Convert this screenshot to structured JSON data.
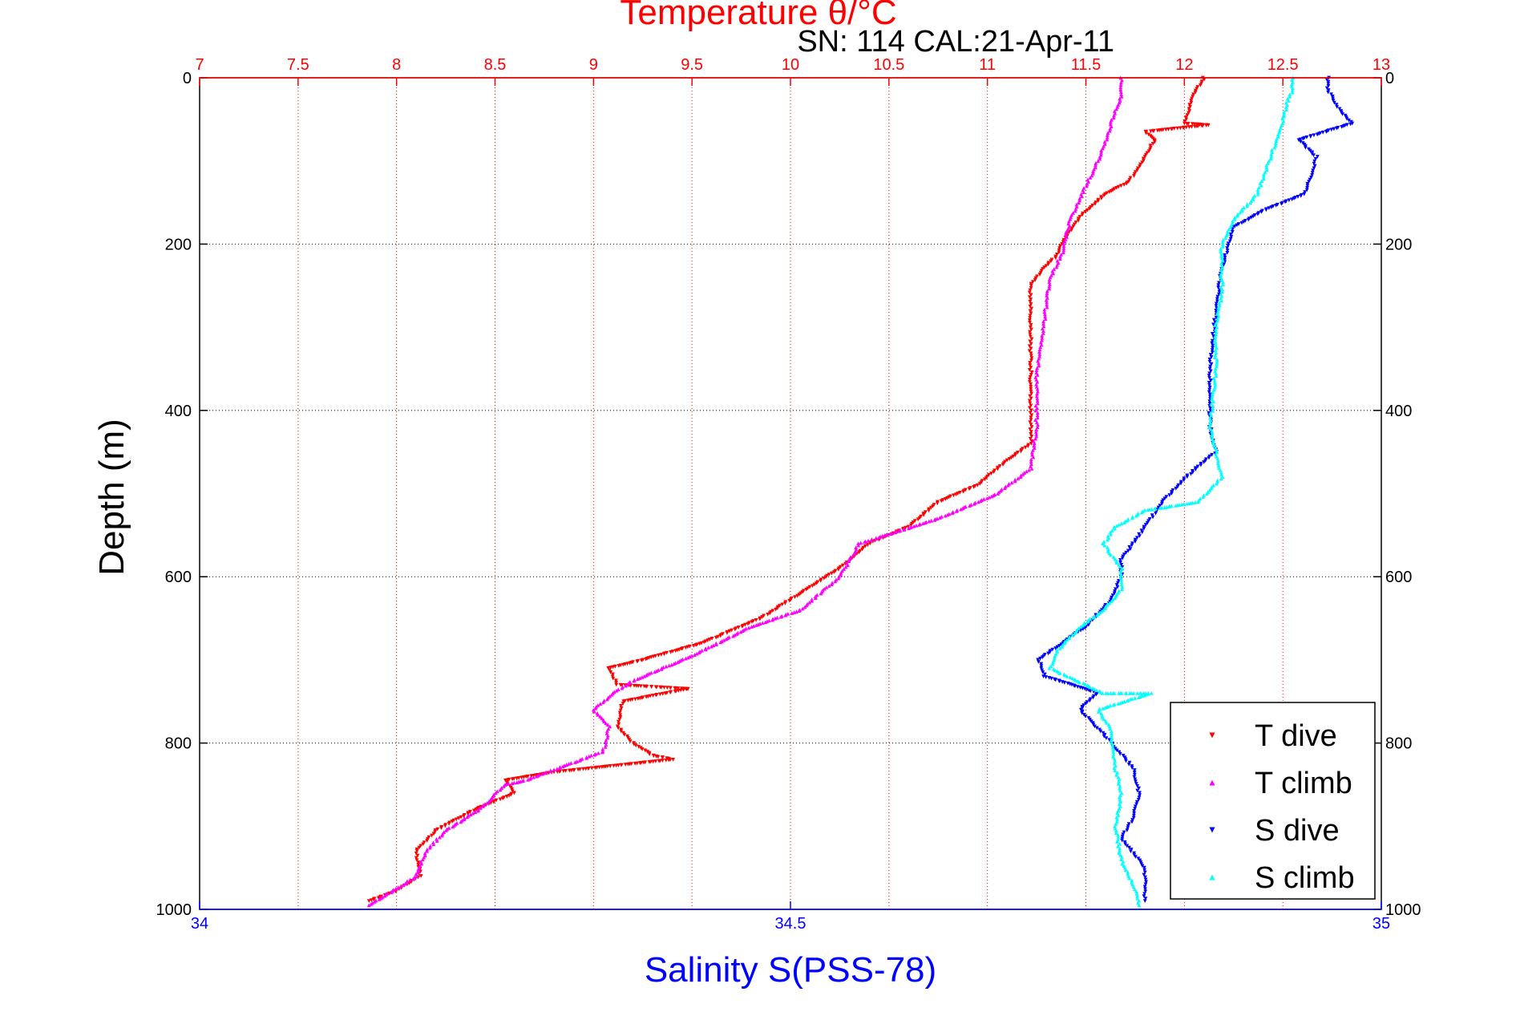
{
  "chart_data": {
    "type": "scatter",
    "title_top": "Temperature θ/°C",
    "subtitle": "SN: 114  CAL:21-Apr-11",
    "ylabel": "Depth (m)",
    "xlabel_bottom": "Salinity S(PSS-78)",
    "y_axis": {
      "range": [
        0,
        1000
      ],
      "reversed": true,
      "ticks": [
        0,
        200,
        400,
        600,
        800,
        1000
      ]
    },
    "x_top_axis": {
      "quantity": "temperature",
      "range": [
        7,
        13
      ],
      "ticks": [
        "7",
        "7.5",
        "8",
        "8.5",
        "9",
        "9.5",
        "10",
        "10.5",
        "11",
        "11.5",
        "12",
        "12.5",
        "13"
      ]
    },
    "x_bottom_axis": {
      "quantity": "salinity",
      "range": [
        34,
        35
      ],
      "ticks": [
        "34",
        "34.5",
        "35"
      ]
    },
    "grid": true,
    "legend_position": "bottom-right",
    "colors": {
      "temperature_axis": "#ff0000",
      "salinity_axis": "#0000ff",
      "axes": "#000000",
      "grid": "#000000"
    },
    "series": [
      {
        "name": "T dive",
        "axis": "temperature",
        "color": "#ff0000",
        "marker": "triangle-down",
        "points": [
          [
            12.1,
            0
          ],
          [
            12.05,
            20
          ],
          [
            12.02,
            40
          ],
          [
            12.0,
            55
          ],
          [
            12.12,
            57
          ],
          [
            11.8,
            65
          ],
          [
            11.85,
            75
          ],
          [
            11.8,
            95
          ],
          [
            11.72,
            125
          ],
          [
            11.6,
            140
          ],
          [
            11.55,
            150
          ],
          [
            11.48,
            165
          ],
          [
            11.4,
            190
          ],
          [
            11.35,
            215
          ],
          [
            11.28,
            230
          ],
          [
            11.22,
            250
          ],
          [
            11.22,
            300
          ],
          [
            11.22,
            400
          ],
          [
            11.22,
            440
          ],
          [
            11.1,
            460
          ],
          [
            10.95,
            490
          ],
          [
            10.75,
            510
          ],
          [
            10.6,
            540
          ],
          [
            10.4,
            560
          ],
          [
            10.25,
            590
          ],
          [
            10.05,
            620
          ],
          [
            9.85,
            650
          ],
          [
            9.55,
            680
          ],
          [
            9.25,
            700
          ],
          [
            9.08,
            710
          ],
          [
            9.12,
            730
          ],
          [
            9.48,
            735
          ],
          [
            9.15,
            750
          ],
          [
            9.12,
            780
          ],
          [
            9.2,
            800
          ],
          [
            9.3,
            815
          ],
          [
            9.4,
            820
          ],
          [
            8.8,
            835
          ],
          [
            8.55,
            845
          ],
          [
            8.6,
            860
          ],
          [
            8.4,
            880
          ],
          [
            8.2,
            905
          ],
          [
            8.1,
            930
          ],
          [
            8.12,
            960
          ],
          [
            7.98,
            980
          ],
          [
            7.86,
            990
          ]
        ]
      },
      {
        "name": "T climb",
        "axis": "temperature",
        "color": "#ff00ff",
        "marker": "triangle-up",
        "points": [
          [
            11.68,
            0
          ],
          [
            11.68,
            20
          ],
          [
            11.65,
            40
          ],
          [
            11.58,
            90
          ],
          [
            11.48,
            140
          ],
          [
            11.42,
            170
          ],
          [
            11.38,
            210
          ],
          [
            11.32,
            240
          ],
          [
            11.3,
            270
          ],
          [
            11.28,
            310
          ],
          [
            11.25,
            360
          ],
          [
            11.25,
            420
          ],
          [
            11.22,
            470
          ],
          [
            11.05,
            500
          ],
          [
            10.95,
            510
          ],
          [
            10.75,
            530
          ],
          [
            10.55,
            545
          ],
          [
            10.35,
            560
          ],
          [
            10.25,
            600
          ],
          [
            10.05,
            640
          ],
          [
            9.8,
            660
          ],
          [
            9.5,
            695
          ],
          [
            9.35,
            710
          ],
          [
            9.2,
            725
          ],
          [
            9.1,
            740
          ],
          [
            9.0,
            760
          ],
          [
            9.08,
            780
          ],
          [
            9.05,
            810
          ],
          [
            8.65,
            845
          ],
          [
            8.55,
            850
          ],
          [
            8.42,
            880
          ],
          [
            8.25,
            905
          ],
          [
            8.15,
            930
          ],
          [
            8.1,
            960
          ],
          [
            8.0,
            975
          ],
          [
            7.86,
            995
          ]
        ]
      },
      {
        "name": "S dive",
        "axis": "salinity",
        "color": "#0000ff",
        "marker": "triangle-down",
        "points": [
          [
            34.955,
            0
          ],
          [
            34.955,
            15
          ],
          [
            34.965,
            40
          ],
          [
            34.975,
            55
          ],
          [
            34.93,
            75
          ],
          [
            34.945,
            95
          ],
          [
            34.94,
            120
          ],
          [
            34.935,
            140
          ],
          [
            34.9,
            160
          ],
          [
            34.875,
            180
          ],
          [
            34.865,
            230
          ],
          [
            34.86,
            280
          ],
          [
            34.855,
            350
          ],
          [
            34.855,
            420
          ],
          [
            34.86,
            450
          ],
          [
            34.835,
            480
          ],
          [
            34.815,
            510
          ],
          [
            34.8,
            540
          ],
          [
            34.79,
            560
          ],
          [
            34.78,
            580
          ],
          [
            34.78,
            600
          ],
          [
            34.77,
            630
          ],
          [
            34.75,
            660
          ],
          [
            34.73,
            680
          ],
          [
            34.71,
            700
          ],
          [
            34.715,
            720
          ],
          [
            34.76,
            740
          ],
          [
            34.745,
            760
          ],
          [
            34.765,
            790
          ],
          [
            34.79,
            830
          ],
          [
            34.795,
            860
          ],
          [
            34.79,
            890
          ],
          [
            34.78,
            915
          ],
          [
            34.8,
            950
          ],
          [
            34.8,
            990
          ]
        ]
      },
      {
        "name": "S climb",
        "axis": "salinity",
        "color": "#00ffff",
        "marker": "triangle-up",
        "points": [
          [
            34.925,
            0
          ],
          [
            34.925,
            15
          ],
          [
            34.92,
            30
          ],
          [
            34.915,
            60
          ],
          [
            34.905,
            100
          ],
          [
            34.895,
            140
          ],
          [
            34.875,
            170
          ],
          [
            34.865,
            200
          ],
          [
            34.865,
            260
          ],
          [
            34.86,
            300
          ],
          [
            34.86,
            350
          ],
          [
            34.855,
            420
          ],
          [
            34.865,
            480
          ],
          [
            34.845,
            510
          ],
          [
            34.8,
            520
          ],
          [
            34.775,
            540
          ],
          [
            34.765,
            560
          ],
          [
            34.78,
            590
          ],
          [
            34.78,
            615
          ],
          [
            34.765,
            640
          ],
          [
            34.745,
            660
          ],
          [
            34.725,
            690
          ],
          [
            34.72,
            710
          ],
          [
            34.765,
            740
          ],
          [
            34.805,
            740
          ],
          [
            34.76,
            760
          ],
          [
            34.77,
            780
          ],
          [
            34.775,
            830
          ],
          [
            34.78,
            860
          ],
          [
            34.775,
            900
          ],
          [
            34.78,
            940
          ],
          [
            34.79,
            970
          ],
          [
            34.795,
            995
          ]
        ]
      }
    ]
  }
}
